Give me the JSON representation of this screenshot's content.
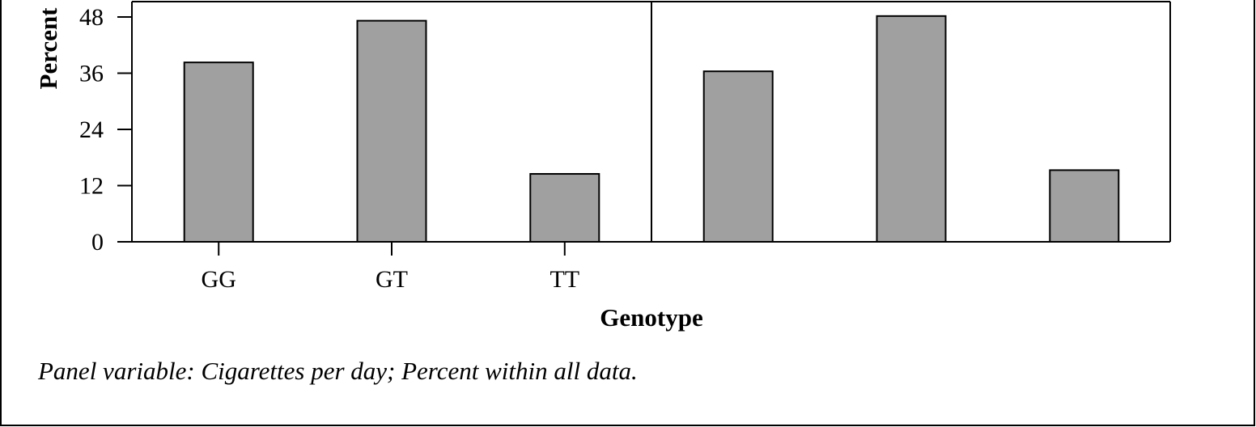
{
  "chart_data": {
    "type": "bar",
    "ylabel": "Percent",
    "xlabel": "Genotype",
    "caption": "Panel variable: Cigarettes per day;  Percent within all data.",
    "categories": [
      "GG",
      "GT",
      "TT"
    ],
    "ylim": [
      0,
      48
    ],
    "yticks": [
      0,
      12,
      24,
      36,
      48
    ],
    "grid": false,
    "bar_color": "#a0a0a0",
    "panels": [
      {
        "values": [
          38.3,
          47.2,
          14.5
        ],
        "show_category_labels": true
      },
      {
        "values": [
          36.4,
          48.2,
          15.3
        ],
        "show_category_labels": false
      }
    ]
  }
}
